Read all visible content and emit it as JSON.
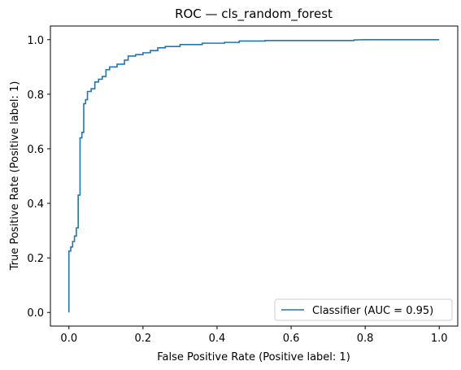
{
  "chart_data": {
    "type": "line",
    "title": "ROC — cls_random_forest",
    "xlabel": "False Positive Rate (Positive label: 1)",
    "ylabel": "True Positive Rate (Positive label: 1)",
    "xlim": [
      -0.05,
      1.05
    ],
    "ylim": [
      -0.05,
      1.05
    ],
    "xticks": [
      0.0,
      0.2,
      0.4,
      0.6,
      0.8,
      1.0
    ],
    "xtick_labels": [
      "0.0",
      "0.2",
      "0.4",
      "0.6",
      "0.8",
      "1.0"
    ],
    "yticks": [
      0.0,
      0.2,
      0.4,
      0.6,
      0.8,
      1.0
    ],
    "ytick_labels": [
      "0.0",
      "0.2",
      "0.4",
      "0.6",
      "0.8",
      "1.0"
    ],
    "grid": false,
    "legend_position": "bottom-right",
    "series": [
      {
        "name": "Classifier (AUC = 0.95)",
        "color": "#1f77b4",
        "x": [
          0.0,
          0.0,
          0.005,
          0.005,
          0.01,
          0.01,
          0.015,
          0.015,
          0.02,
          0.02,
          0.025,
          0.025,
          0.03,
          0.03,
          0.035,
          0.035,
          0.04,
          0.04,
          0.045,
          0.045,
          0.05,
          0.05,
          0.06,
          0.06,
          0.07,
          0.07,
          0.08,
          0.08,
          0.09,
          0.09,
          0.1,
          0.1,
          0.11,
          0.11,
          0.13,
          0.13,
          0.15,
          0.15,
          0.16,
          0.16,
          0.18,
          0.18,
          0.2,
          0.2,
          0.22,
          0.22,
          0.24,
          0.24,
          0.26,
          0.26,
          0.3,
          0.3,
          0.36,
          0.36,
          0.42,
          0.42,
          0.46,
          0.46,
          0.53,
          0.53,
          0.77,
          0.77,
          0.8,
          1.0
        ],
        "y": [
          0.0,
          0.225,
          0.225,
          0.24,
          0.24,
          0.26,
          0.26,
          0.28,
          0.28,
          0.31,
          0.31,
          0.43,
          0.43,
          0.64,
          0.64,
          0.66,
          0.66,
          0.765,
          0.765,
          0.78,
          0.78,
          0.81,
          0.81,
          0.82,
          0.82,
          0.845,
          0.845,
          0.855,
          0.855,
          0.865,
          0.865,
          0.89,
          0.89,
          0.9,
          0.9,
          0.91,
          0.91,
          0.925,
          0.925,
          0.94,
          0.94,
          0.945,
          0.945,
          0.952,
          0.952,
          0.96,
          0.96,
          0.97,
          0.97,
          0.975,
          0.975,
          0.982,
          0.982,
          0.987,
          0.987,
          0.99,
          0.99,
          0.995,
          0.995,
          0.997,
          0.997,
          0.999,
          1.0,
          1.0
        ]
      }
    ]
  }
}
